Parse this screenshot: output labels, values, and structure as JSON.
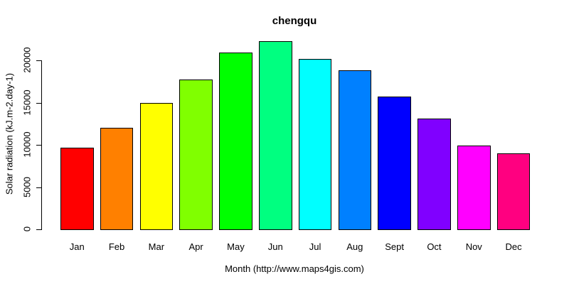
{
  "chart_data": {
    "type": "bar",
    "title": "chengqu",
    "xlabel": "Month (http://www.maps4gis.com)",
    "ylabel": "Solar radiation (kJ.m-2.day-1)",
    "categories": [
      "Jan",
      "Feb",
      "Mar",
      "Apr",
      "May",
      "Jun",
      "Jul",
      "Aug",
      "Sept",
      "Oct",
      "Nov",
      "Dec"
    ],
    "values": [
      9700,
      12000,
      15000,
      17700,
      20900,
      22300,
      20200,
      18800,
      15700,
      13100,
      9900,
      9000
    ],
    "bar_colors": [
      "#FF0000",
      "#FF8000",
      "#FFFF00",
      "#80FF00",
      "#00FF00",
      "#00FF80",
      "#00FFFF",
      "#0080FF",
      "#0000FF",
      "#8000FF",
      "#FF00FF",
      "#FF0080"
    ],
    "bar_border_color": "#000000",
    "yticks": [
      0,
      5000,
      10000,
      15000,
      20000
    ],
    "ytick_labels": [
      "0",
      "5000",
      "10000",
      "15000",
      "20000"
    ],
    "ylim": [
      0,
      22300
    ],
    "grid": false,
    "legend": null,
    "axis_color": "#000000",
    "background_color": "#FFFFFF"
  }
}
